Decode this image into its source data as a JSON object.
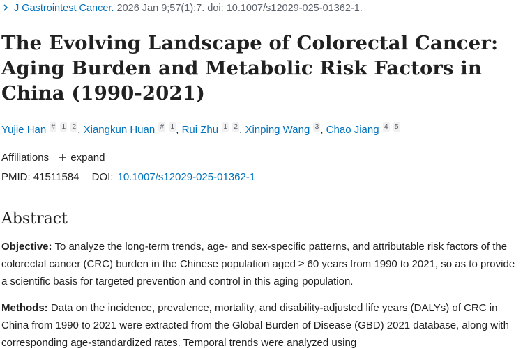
{
  "citation": {
    "journal": "J Gastrointest Cancer.",
    "details": "2026 Jan 9;57(1):7. doi: 10.1007/s12029-025-01362-1."
  },
  "title": "The Evolving Landscape of Colorectal Cancer: Aging Burden and Metabolic Risk Factors in China (1990-2021)",
  "authors": [
    {
      "name": "Yujie Han",
      "marks": [
        "#",
        "1",
        "2"
      ]
    },
    {
      "name": "Xiangkun Huan",
      "marks": [
        "#",
        "1"
      ]
    },
    {
      "name": "Rui Zhu",
      "marks": [
        "1",
        "2"
      ]
    },
    {
      "name": "Xinping Wang",
      "marks": [
        "3"
      ]
    },
    {
      "name": "Chao Jiang",
      "marks": [
        "4",
        "5"
      ]
    }
  ],
  "affiliations": {
    "label": "Affiliations",
    "expand_label": "expand"
  },
  "identifiers": {
    "pmid_label": "PMID:",
    "pmid": "41511584",
    "doi_label": "DOI:",
    "doi": "10.1007/s12029-025-01362-1"
  },
  "abstract": {
    "heading": "Abstract",
    "objective_label": "Objective:",
    "objective_text": "To analyze the long-term trends, age- and sex-specific patterns, and attributable risk factors of the colorectal cancer (CRC) burden in the Chinese population aged ≥ 60 years from 1990 to 2021, so as to provide a scientific basis for targeted prevention and control in this aging population.",
    "methods_label": "Methods:",
    "methods_text": "Data on the incidence, prevalence, mortality, and disability-adjusted life years (DALYs) of CRC in China from 1990 to 2021 were extracted from the Global Burden of Disease (GBD) 2021 database, along with corresponding age-standardized rates. Temporal trends were analyzed using"
  }
}
